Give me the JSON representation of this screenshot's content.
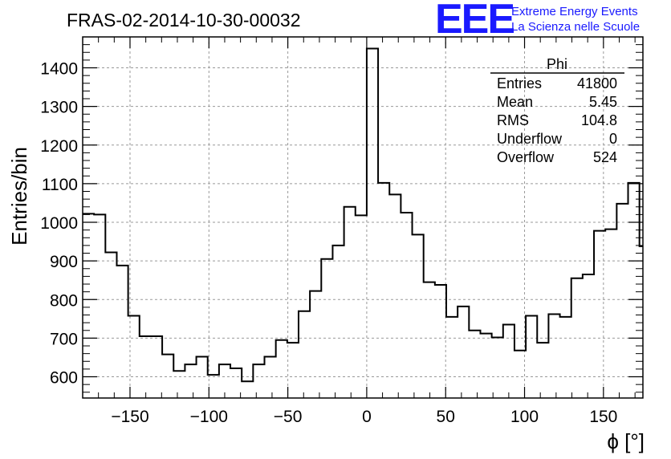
{
  "chart_data": {
    "type": "histogram",
    "title": "FRAS-02-2014-10-30-00032",
    "xlabel": "ϕ [°]",
    "ylabel": "Entries/bin",
    "xlim": [
      -180,
      175
    ],
    "ylim": [
      545,
      1480
    ],
    "xticks": [
      -150,
      -100,
      -50,
      0,
      50,
      100,
      150
    ],
    "xtick_labels": [
      "−150",
      "−100",
      "−50",
      "0",
      "50",
      "100",
      "150"
    ],
    "yticks": [
      600,
      700,
      800,
      900,
      1000,
      1100,
      1200,
      1300,
      1400
    ],
    "ytick_labels": [
      "600",
      "700",
      "800",
      "900",
      "1000",
      "1100",
      "1200",
      "1300",
      "1400"
    ],
    "grid": true,
    "bin_edges_start": -180,
    "bin_width": 7.2,
    "values": [
      1022,
      1020,
      922,
      888,
      758,
      705,
      705,
      658,
      615,
      632,
      652,
      605,
      632,
      622,
      588,
      632,
      652,
      695,
      688,
      770,
      822,
      905,
      940,
      1040,
      1018,
      1450,
      1102,
      1072,
      1025,
      968,
      845,
      838,
      755,
      782,
      720,
      712,
      702,
      735,
      668,
      758,
      688,
      762,
      755,
      855,
      865,
      978,
      982,
      1048,
      1102,
      938
    ],
    "legend": {
      "title": "Phi",
      "entries": [
        {
          "label": "Entries",
          "value": "41800"
        },
        {
          "label": "Mean",
          "value": "5.45"
        },
        {
          "label": "RMS",
          "value": "104.8"
        },
        {
          "label": "Underflow",
          "value": "0"
        },
        {
          "label": "Overflow",
          "value": "524"
        }
      ]
    }
  },
  "logo": {
    "mark": "EEE",
    "line1": "Extreme Energy Events",
    "line2": "La Scienza nelle Scuole"
  }
}
